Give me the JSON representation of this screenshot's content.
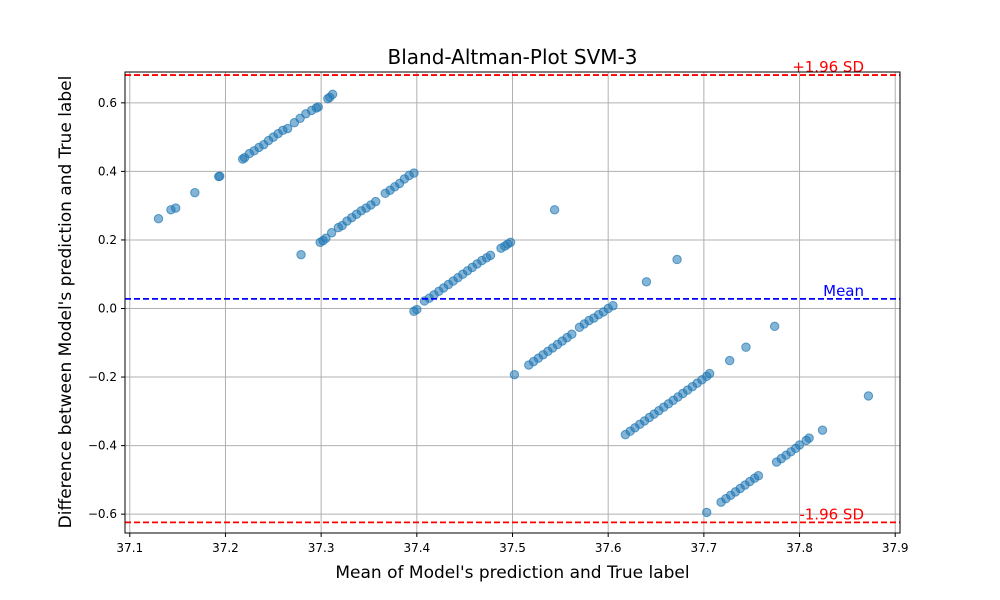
{
  "chart_data": {
    "type": "scatter",
    "title": "Bland-Altman-Plot SVM-3",
    "xlabel": "Mean of Model's prediction and True label",
    "ylabel": "Difference between Model's prediction and True label",
    "xlim": [
      37.095,
      37.905
    ],
    "ylim": [
      -0.655,
      0.69
    ],
    "xticks": [
      "37.1",
      "37.2",
      "37.3",
      "37.4",
      "37.5",
      "37.6",
      "37.7",
      "37.8",
      "37.9"
    ],
    "xtick_values": [
      37.1,
      37.2,
      37.3,
      37.4,
      37.5,
      37.6,
      37.7,
      37.8,
      37.9
    ],
    "yticks": [
      "−0.6",
      "−0.4",
      "−0.2",
      "0.0",
      "0.2",
      "0.4",
      "0.6"
    ],
    "ytick_values": [
      -0.6,
      -0.4,
      -0.2,
      0.0,
      0.2,
      0.4,
      0.6
    ],
    "grid": true,
    "mean_line": {
      "label": "Mean",
      "value": 0.028,
      "color": "#0000ff"
    },
    "upper_line": {
      "label": "+1.96 SD",
      "value": 0.681,
      "color": "#ff0000"
    },
    "lower_line": {
      "label": "-1.96 SD",
      "value": -0.624,
      "color": "#ff0000"
    },
    "point_color": "#1f77b4",
    "points": [
      [
        37.13,
        0.262
      ],
      [
        37.143,
        0.288
      ],
      [
        37.148,
        0.293
      ],
      [
        37.168,
        0.338
      ],
      [
        37.193,
        0.385
      ],
      [
        37.194,
        0.386
      ],
      [
        37.218,
        0.436
      ],
      [
        37.22,
        0.44
      ],
      [
        37.225,
        0.452
      ],
      [
        37.23,
        0.46
      ],
      [
        37.235,
        0.47
      ],
      [
        37.24,
        0.478
      ],
      [
        37.245,
        0.49
      ],
      [
        37.25,
        0.5
      ],
      [
        37.255,
        0.51
      ],
      [
        37.26,
        0.52
      ],
      [
        37.265,
        0.525
      ],
      [
        37.272,
        0.542
      ],
      [
        37.278,
        0.555
      ],
      [
        37.284,
        0.568
      ],
      [
        37.29,
        0.578
      ],
      [
        37.295,
        0.585
      ],
      [
        37.297,
        0.588
      ],
      [
        37.307,
        0.612
      ],
      [
        37.309,
        0.616
      ],
      [
        37.312,
        0.625
      ],
      [
        37.279,
        0.157
      ],
      [
        37.299,
        0.193
      ],
      [
        37.302,
        0.198
      ],
      [
        37.305,
        0.205
      ],
      [
        37.311,
        0.221
      ],
      [
        37.318,
        0.236
      ],
      [
        37.322,
        0.242
      ],
      [
        37.327,
        0.255
      ],
      [
        37.332,
        0.265
      ],
      [
        37.337,
        0.275
      ],
      [
        37.342,
        0.285
      ],
      [
        37.347,
        0.293
      ],
      [
        37.352,
        0.302
      ],
      [
        37.357,
        0.312
      ],
      [
        37.367,
        0.336
      ],
      [
        37.372,
        0.345
      ],
      [
        37.377,
        0.355
      ],
      [
        37.382,
        0.365
      ],
      [
        37.387,
        0.378
      ],
      [
        37.392,
        0.388
      ],
      [
        37.397,
        0.395
      ],
      [
        37.397,
        -0.008
      ],
      [
        37.4,
        -0.003
      ],
      [
        37.408,
        0.022
      ],
      [
        37.413,
        0.03
      ],
      [
        37.418,
        0.04
      ],
      [
        37.423,
        0.05
      ],
      [
        37.428,
        0.06
      ],
      [
        37.433,
        0.07
      ],
      [
        37.438,
        0.08
      ],
      [
        37.443,
        0.09
      ],
      [
        37.448,
        0.1
      ],
      [
        37.453,
        0.11
      ],
      [
        37.458,
        0.12
      ],
      [
        37.463,
        0.13
      ],
      [
        37.468,
        0.14
      ],
      [
        37.473,
        0.148
      ],
      [
        37.477,
        0.155
      ],
      [
        37.488,
        0.176
      ],
      [
        37.492,
        0.182
      ],
      [
        37.495,
        0.188
      ],
      [
        37.498,
        0.193
      ],
      [
        37.544,
        0.288
      ],
      [
        37.502,
        -0.193
      ],
      [
        37.517,
        -0.165
      ],
      [
        37.522,
        -0.155
      ],
      [
        37.527,
        -0.145
      ],
      [
        37.532,
        -0.135
      ],
      [
        37.537,
        -0.125
      ],
      [
        37.542,
        -0.115
      ],
      [
        37.547,
        -0.105
      ],
      [
        37.552,
        -0.095
      ],
      [
        37.557,
        -0.085
      ],
      [
        37.562,
        -0.075
      ],
      [
        37.57,
        -0.055
      ],
      [
        37.575,
        -0.045
      ],
      [
        37.58,
        -0.035
      ],
      [
        37.585,
        -0.028
      ],
      [
        37.59,
        -0.018
      ],
      [
        37.595,
        -0.01
      ],
      [
        37.6,
        0.0
      ],
      [
        37.605,
        0.008
      ],
      [
        37.64,
        0.078
      ],
      [
        37.672,
        0.143
      ],
      [
        37.618,
        -0.368
      ],
      [
        37.623,
        -0.358
      ],
      [
        37.628,
        -0.348
      ],
      [
        37.633,
        -0.338
      ],
      [
        37.638,
        -0.328
      ],
      [
        37.643,
        -0.318
      ],
      [
        37.648,
        -0.308
      ],
      [
        37.653,
        -0.298
      ],
      [
        37.658,
        -0.288
      ],
      [
        37.663,
        -0.278
      ],
      [
        37.668,
        -0.268
      ],
      [
        37.673,
        -0.258
      ],
      [
        37.678,
        -0.248
      ],
      [
        37.683,
        -0.238
      ],
      [
        37.688,
        -0.228
      ],
      [
        37.693,
        -0.218
      ],
      [
        37.698,
        -0.208
      ],
      [
        37.703,
        -0.198
      ],
      [
        37.706,
        -0.19
      ],
      [
        37.727,
        -0.152
      ],
      [
        37.744,
        -0.113
      ],
      [
        37.774,
        -0.052
      ],
      [
        37.703,
        -0.595
      ],
      [
        37.718,
        -0.565
      ],
      [
        37.723,
        -0.555
      ],
      [
        37.728,
        -0.545
      ],
      [
        37.733,
        -0.535
      ],
      [
        37.738,
        -0.525
      ],
      [
        37.743,
        -0.515
      ],
      [
        37.748,
        -0.505
      ],
      [
        37.753,
        -0.495
      ],
      [
        37.757,
        -0.488
      ],
      [
        37.776,
        -0.448
      ],
      [
        37.781,
        -0.438
      ],
      [
        37.786,
        -0.428
      ],
      [
        37.791,
        -0.418
      ],
      [
        37.796,
        -0.408
      ],
      [
        37.8,
        -0.398
      ],
      [
        37.807,
        -0.385
      ],
      [
        37.81,
        -0.378
      ],
      [
        37.824,
        -0.355
      ],
      [
        37.872,
        -0.255
      ]
    ]
  }
}
